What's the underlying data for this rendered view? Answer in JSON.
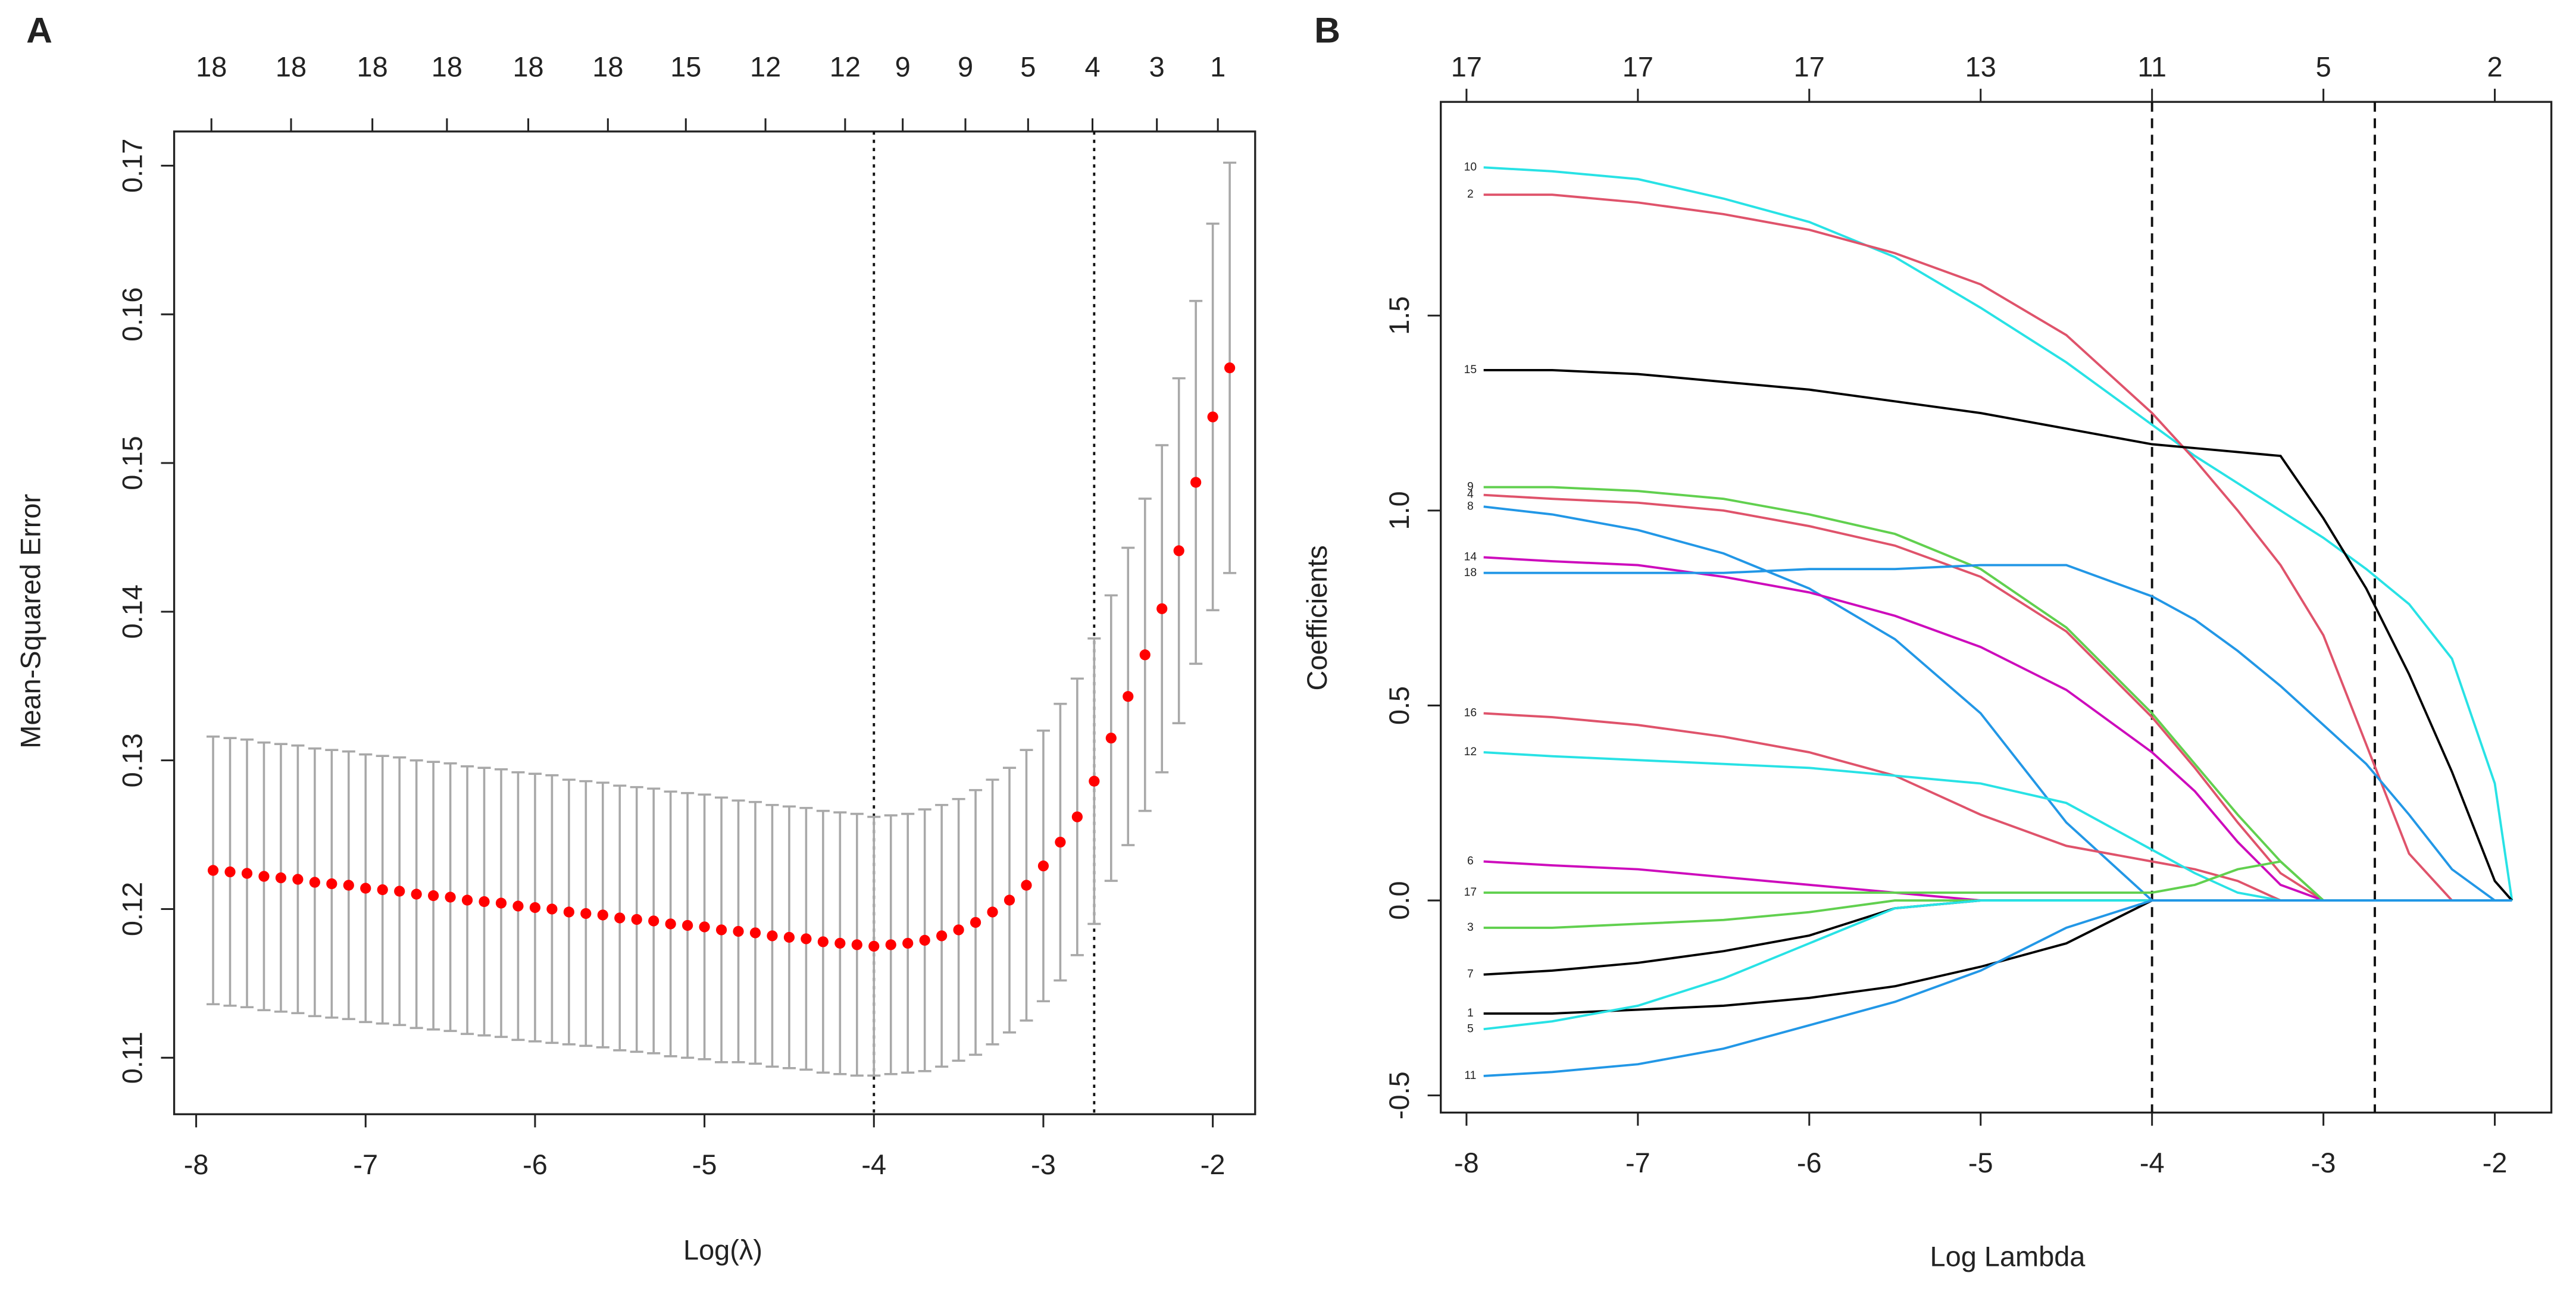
{
  "chart_data": [
    {
      "type": "errorbar",
      "panel": "A",
      "x_label": "Log(λ)",
      "y_label": "Mean-Squared Error",
      "xlim": [
        -8.13,
        -1.75
      ],
      "ylim": [
        0.1062,
        0.1723
      ],
      "xticks": [
        -8,
        -7,
        -6,
        -5,
        -4,
        -3,
        -2
      ],
      "yticks": [
        0.11,
        0.12,
        0.13,
        0.14,
        0.15,
        0.16,
        0.17
      ],
      "x2ticks": [
        {
          "value": -7.91,
          "label": "18"
        },
        {
          "value": -7.44,
          "label": "18"
        },
        {
          "value": -6.96,
          "label": "18"
        },
        {
          "value": -6.52,
          "label": "18"
        },
        {
          "value": -6.04,
          "label": "18"
        },
        {
          "value": -5.57,
          "label": "18"
        },
        {
          "value": -5.11,
          "label": "15"
        },
        {
          "value": -4.64,
          "label": "12"
        },
        {
          "value": -4.17,
          "label": "12"
        },
        {
          "value": -3.83,
          "label": "9"
        },
        {
          "value": -3.46,
          "label": "9"
        },
        {
          "value": -3.09,
          "label": "5"
        },
        {
          "value": -2.71,
          "label": "4"
        },
        {
          "value": -2.33,
          "label": "3"
        },
        {
          "value": -1.97,
          "label": "1"
        }
      ],
      "vlines": [
        -4.0,
        -2.7
      ],
      "vline_dash": "2,3",
      "color": "#ff0000",
      "error_color": "#a8a8a8",
      "x": [
        -7.9,
        -7.8,
        -7.7,
        -7.6,
        -7.5,
        -7.4,
        -7.3,
        -7.2,
        -7.1,
        -7.0,
        -6.9,
        -6.8,
        -6.7,
        -6.6,
        -6.5,
        -6.4,
        -6.3,
        -6.2,
        -6.1,
        -6.0,
        -5.9,
        -5.8,
        -5.7,
        -5.6,
        -5.5,
        -5.4,
        -5.3,
        -5.2,
        -5.1,
        -5.0,
        -4.9,
        -4.8,
        -4.7,
        -4.6,
        -4.5,
        -4.4,
        -4.3,
        -4.2,
        -4.1,
        -4.0,
        -3.9,
        -3.8,
        -3.7,
        -3.6,
        -3.5,
        -3.4,
        -3.3,
        -3.2,
        -3.1,
        -3.0,
        -2.9,
        -2.8,
        -2.7,
        -2.6,
        -2.5,
        -2.4,
        -2.3,
        -2.2,
        -2.1,
        -2.0,
        -1.9
      ],
      "values": [
        0.1226,
        0.1225,
        0.1224,
        0.1222,
        0.1221,
        0.122,
        0.1218,
        0.1217,
        0.1216,
        0.1214,
        0.1213,
        0.1212,
        0.121,
        0.1209,
        0.1208,
        0.1206,
        0.1205,
        0.1204,
        0.1202,
        0.1201,
        0.12,
        0.1198,
        0.1197,
        0.1196,
        0.1194,
        0.1193,
        0.1192,
        0.119,
        0.1189,
        0.1188,
        0.1186,
        0.1185,
        0.1184,
        0.1182,
        0.1181,
        0.118,
        0.1178,
        0.1177,
        0.1176,
        0.1175,
        0.1176,
        0.1177,
        0.1179,
        0.1182,
        0.1186,
        0.1191,
        0.1198,
        0.1206,
        0.1216,
        0.1229,
        0.1245,
        0.1262,
        0.1286,
        0.1315,
        0.1343,
        0.1371,
        0.1402,
        0.1441,
        0.1487,
        0.1531,
        0.1564
      ],
      "errors": [
        0.009,
        0.009,
        0.009,
        0.009,
        0.009,
        0.009,
        0.009,
        0.009,
        0.009,
        0.009,
        0.009,
        0.009,
        0.009,
        0.009,
        0.009,
        0.009,
        0.009,
        0.009,
        0.009,
        0.009,
        0.009,
        0.0089,
        0.0089,
        0.0089,
        0.0089,
        0.0089,
        0.0089,
        0.0089,
        0.0089,
        0.0089,
        0.0089,
        0.0088,
        0.0088,
        0.0088,
        0.0088,
        0.0088,
        0.0088,
        0.0088,
        0.0088,
        0.0087,
        0.0087,
        0.0087,
        0.0088,
        0.0088,
        0.0088,
        0.0089,
        0.0089,
        0.0089,
        0.0091,
        0.0091,
        0.0093,
        0.0093,
        0.0096,
        0.0096,
        0.01,
        0.0105,
        0.011,
        0.0116,
        0.0122,
        0.013,
        0.0138
      ]
    },
    {
      "type": "line",
      "panel": "B",
      "x_label": "Log Lambda",
      "y_label": "Coefficients",
      "xlim": [
        -8.15,
        -1.67
      ],
      "ylim": [
        -0.544,
        2.048
      ],
      "xticks": [
        -8,
        -7,
        -6,
        -5,
        -4,
        -3,
        -2
      ],
      "yticks": [
        -0.5,
        {
          "value": 0,
          "label": "0.0"
        },
        0.5,
        {
          "value": 1,
          "label": "1.0"
        },
        1.5
      ],
      "x2ticks": [
        {
          "value": -8,
          "label": "17"
        },
        {
          "value": -7,
          "label": "17"
        },
        {
          "value": -6,
          "label": "17"
        },
        {
          "value": -5,
          "label": "13"
        },
        {
          "value": -4,
          "label": "11"
        },
        {
          "value": -3,
          "label": "5"
        },
        {
          "value": -2,
          "label": "2"
        }
      ],
      "vlines": [
        -4.0,
        -2.7
      ],
      "vline_dash": "6,4",
      "x": [
        -7.9,
        -7.5,
        -7,
        -6.5,
        -6,
        -5.5,
        -5,
        -4.5,
        -4,
        -3.75,
        -3.5,
        -3.25,
        -3,
        -2.75,
        -2.5,
        -2.25,
        -2,
        -1.9
      ],
      "series": [
        {
          "name": "10",
          "color": "#28e2e5",
          "values": [
            1.88,
            1.87,
            1.85,
            1.8,
            1.74,
            1.65,
            1.52,
            1.38,
            1.22,
            1.14,
            1.07,
            1.0,
            0.93,
            0.85,
            0.76,
            0.62,
            0.3,
            0
          ]
        },
        {
          "name": "2",
          "color": "#df536b",
          "values": [
            1.81,
            1.81,
            1.79,
            1.76,
            1.72,
            1.66,
            1.58,
            1.45,
            1.25,
            1.13,
            1.0,
            0.86,
            0.68,
            0.4,
            0.12,
            0,
            0,
            0
          ]
        },
        {
          "name": "15",
          "color": "#000000",
          "values": [
            1.36,
            1.36,
            1.35,
            1.33,
            1.31,
            1.28,
            1.25,
            1.21,
            1.17,
            1.16,
            1.15,
            1.14,
            0.98,
            0.8,
            0.58,
            0.33,
            0.05,
            0
          ]
        },
        {
          "name": "9",
          "color": "#61d04f",
          "values": [
            1.06,
            1.06,
            1.05,
            1.03,
            0.99,
            0.94,
            0.85,
            0.7,
            0.48,
            0.35,
            0.22,
            0.1,
            0,
            0,
            0,
            0,
            0,
            0
          ]
        },
        {
          "name": "4",
          "color": "#df536b",
          "values": [
            1.04,
            1.03,
            1.02,
            1.0,
            0.96,
            0.91,
            0.83,
            0.69,
            0.47,
            0.34,
            0.2,
            0.07,
            0,
            0,
            0,
            0,
            0,
            0
          ]
        },
        {
          "name": "8",
          "color": "#2297e6",
          "values": [
            1.01,
            0.99,
            0.95,
            0.89,
            0.8,
            0.67,
            0.48,
            0.2,
            0,
            0,
            0,
            0,
            0,
            0,
            0,
            0,
            0,
            0
          ]
        },
        {
          "name": "14",
          "color": "#cd0bbc",
          "values": [
            0.88,
            0.87,
            0.86,
            0.83,
            0.79,
            0.73,
            0.65,
            0.54,
            0.38,
            0.28,
            0.15,
            0.04,
            0,
            0,
            0,
            0,
            0,
            0
          ]
        },
        {
          "name": "18",
          "color": "#2297e6",
          "values": [
            0.84,
            0.84,
            0.84,
            0.84,
            0.85,
            0.85,
            0.86,
            0.86,
            0.78,
            0.72,
            0.64,
            0.55,
            0.45,
            0.35,
            0.22,
            0.08,
            0,
            0
          ]
        },
        {
          "name": "16",
          "color": "#df536b",
          "values": [
            0.48,
            0.47,
            0.45,
            0.42,
            0.38,
            0.32,
            0.22,
            0.14,
            0.1,
            0.08,
            0.05,
            0,
            0,
            0,
            0,
            0,
            0,
            0
          ]
        },
        {
          "name": "12",
          "color": "#28e2e5",
          "values": [
            0.38,
            0.37,
            0.36,
            0.35,
            0.34,
            0.32,
            0.3,
            0.25,
            0.13,
            0.07,
            0.02,
            0,
            0,
            0,
            0,
            0,
            0,
            0
          ]
        },
        {
          "name": "6",
          "color": "#cd0bbc",
          "values": [
            0.1,
            0.09,
            0.08,
            0.06,
            0.04,
            0.02,
            0,
            0,
            0,
            0,
            0,
            0,
            0,
            0,
            0,
            0,
            0,
            0
          ]
        },
        {
          "name": "17",
          "color": "#61d04f",
          "values": [
            0.02,
            0.02,
            0.02,
            0.02,
            0.02,
            0.02,
            0.02,
            0.02,
            0.02,
            0.04,
            0.08,
            0.1,
            0,
            0,
            0,
            0,
            0,
            0
          ]
        },
        {
          "name": "3",
          "color": "#61d04f",
          "values": [
            -0.07,
            -0.07,
            -0.06,
            -0.05,
            -0.03,
            0,
            0,
            0,
            0,
            0,
            0,
            0,
            0,
            0,
            0,
            0,
            0,
            0
          ]
        },
        {
          "name": "7",
          "color": "#000000",
          "values": [
            -0.19,
            -0.18,
            -0.16,
            -0.13,
            -0.09,
            -0.02,
            0,
            0,
            0,
            0,
            0,
            0,
            0,
            0,
            0,
            0,
            0,
            0
          ]
        },
        {
          "name": "1",
          "color": "#000000",
          "values": [
            -0.29,
            -0.29,
            -0.28,
            -0.27,
            -0.25,
            -0.22,
            -0.17,
            -0.11,
            0,
            0,
            0,
            0,
            0,
            0,
            0,
            0,
            0,
            0
          ]
        },
        {
          "name": "5",
          "color": "#28e2e5",
          "values": [
            -0.33,
            -0.31,
            -0.27,
            -0.2,
            -0.11,
            -0.02,
            0,
            0,
            0,
            0,
            0,
            0,
            0,
            0,
            0,
            0,
            0,
            0
          ]
        },
        {
          "name": "11",
          "color": "#2297e6",
          "values": [
            -0.45,
            -0.44,
            -0.42,
            -0.38,
            -0.32,
            -0.26,
            -0.18,
            -0.07,
            0,
            0,
            0,
            0,
            0,
            0,
            0,
            0,
            0,
            0
          ]
        }
      ]
    }
  ]
}
